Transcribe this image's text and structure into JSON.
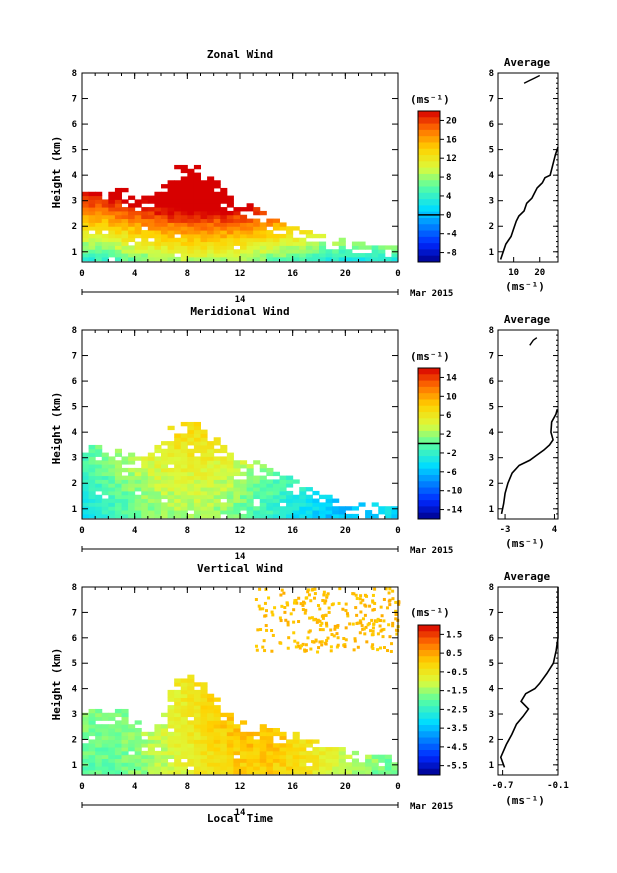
{
  "figure": {
    "date_label": "Mar 2015",
    "day_label": "14",
    "xlabel_bottom": "Local Time",
    "unit_label": "(ms⁻¹)",
    "profile_unit_label": "(ms⁻¹)"
  },
  "chart_data": [
    {
      "type": "heatmap",
      "name": "zonal",
      "title": "Zonal Wind",
      "ylabel": "Height (km)",
      "xlabel": "",
      "x_ticks": [
        "0",
        "4",
        "8",
        "12",
        "16",
        "20",
        "0"
      ],
      "y_ticks": [
        "1",
        "2",
        "3",
        "4",
        "5",
        "6",
        "7",
        "8"
      ],
      "xlim": [
        0,
        24
      ],
      "ylim": [
        0.6,
        8.0
      ],
      "colorbar": {
        "unit": "(ms⁻¹)",
        "min": -10,
        "max": 22,
        "tick_labels": [
          "20",
          "16",
          "12",
          "8",
          "4",
          "0",
          "-4",
          "-8"
        ],
        "tick_values": [
          20,
          16,
          12,
          8,
          4,
          0,
          -4,
          -8
        ],
        "zero_line": 0
      },
      "data_extent": [
        {
          "t": 0,
          "top": 3.4
        },
        {
          "t": 1,
          "top": 3.3
        },
        {
          "t": 2,
          "top": 3.1
        },
        {
          "t": 3,
          "top": 3.6
        },
        {
          "t": 4,
          "top": 3.0
        },
        {
          "t": 5,
          "top": 3.1
        },
        {
          "t": 6,
          "top": 3.6
        },
        {
          "t": 7,
          "top": 4.2
        },
        {
          "t": 8,
          "top": 4.4
        },
        {
          "t": 9,
          "top": 4.2
        },
        {
          "t": 10,
          "top": 3.9
        },
        {
          "t": 11,
          "top": 3.2
        },
        {
          "t": 12,
          "top": 2.6
        },
        {
          "t": 13,
          "top": 2.8
        },
        {
          "t": 14,
          "top": 2.5
        },
        {
          "t": 15,
          "top": 2.1
        },
        {
          "t": 16,
          "top": 1.9
        },
        {
          "t": 17,
          "top": 1.8
        },
        {
          "t": 18,
          "top": 1.6
        },
        {
          "t": 19,
          "top": 1.5
        },
        {
          "t": 20,
          "top": 1.4
        },
        {
          "t": 21,
          "top": 1.3
        },
        {
          "t": 22,
          "top": 1.2
        },
        {
          "t": 23,
          "top": 1.2
        },
        {
          "t": 24,
          "top": 1.2
        }
      ],
      "value_model": {
        "surface": 6,
        "lapse": 7,
        "diurnal_amp": 3,
        "peak_hour": 9
      },
      "contours": [
        0
      ]
    },
    {
      "type": "heatmap",
      "name": "meridional",
      "title": "Meridional Wind",
      "ylabel": "Height (km)",
      "xlabel": "",
      "x_ticks": [
        "0",
        "4",
        "8",
        "12",
        "16",
        "20",
        "0"
      ],
      "y_ticks": [
        "1",
        "2",
        "3",
        "4",
        "5",
        "6",
        "7",
        "8"
      ],
      "xlim": [
        0,
        24
      ],
      "ylim": [
        0.6,
        8.0
      ],
      "colorbar": {
        "unit": "(ms⁻¹)",
        "min": -16,
        "max": 16,
        "tick_labels": [
          "14",
          "10",
          "6",
          "2",
          "-2",
          "-6",
          "-10",
          "-14"
        ],
        "tick_values": [
          14,
          10,
          6,
          2,
          -2,
          -6,
          -10,
          -14
        ],
        "zero_line": 0
      },
      "data_extent": [
        {
          "t": 0,
          "top": 3.5
        },
        {
          "t": 1,
          "top": 3.4
        },
        {
          "t": 2,
          "top": 3.3
        },
        {
          "t": 3,
          "top": 3.2
        },
        {
          "t": 4,
          "top": 3.0
        },
        {
          "t": 5,
          "top": 3.2
        },
        {
          "t": 6,
          "top": 3.6
        },
        {
          "t": 7,
          "top": 4.3
        },
        {
          "t": 8,
          "top": 4.4
        },
        {
          "t": 9,
          "top": 4.3
        },
        {
          "t": 10,
          "top": 3.8
        },
        {
          "t": 11,
          "top": 3.2
        },
        {
          "t": 12,
          "top": 2.9
        },
        {
          "t": 13,
          "top": 2.8
        },
        {
          "t": 14,
          "top": 2.6
        },
        {
          "t": 15,
          "top": 2.4
        },
        {
          "t": 16,
          "top": 2.1
        },
        {
          "t": 17,
          "top": 1.8
        },
        {
          "t": 18,
          "top": 1.6
        },
        {
          "t": 19,
          "top": 1.4
        },
        {
          "t": 20,
          "top": 1.3
        },
        {
          "t": 21,
          "top": 1.2
        },
        {
          "t": 22,
          "top": 1.2
        },
        {
          "t": 23,
          "top": 1.1
        },
        {
          "t": 24,
          "top": 1.1
        }
      ],
      "value_model": {
        "surface": -2,
        "lapse": 1.5,
        "diurnal_amp": 4,
        "peak_hour": 8
      },
      "contours": [
        0
      ]
    },
    {
      "type": "heatmap",
      "name": "vertical",
      "title": "Vertical Wind",
      "ylabel": "Height (km)",
      "xlabel": "Local Time",
      "x_ticks": [
        "0",
        "4",
        "8",
        "12",
        "16",
        "20",
        "0"
      ],
      "y_ticks": [
        "1",
        "2",
        "3",
        "4",
        "5",
        "6",
        "7",
        "8"
      ],
      "xlim": [
        0,
        24
      ],
      "ylim": [
        0.6,
        8.0
      ],
      "colorbar": {
        "unit": "(ms⁻¹)",
        "min": -6.0,
        "max": 2.0,
        "tick_labels": [
          "1.5",
          "0.5",
          "-0.5",
          "-1.5",
          "-2.5",
          "-3.5",
          "-4.5",
          "-5.5"
        ],
        "tick_values": [
          1.5,
          0.5,
          -0.5,
          -1.5,
          -2.5,
          -3.5,
          -4.5,
          -5.5
        ]
      },
      "data_extent": [
        {
          "t": 0,
          "top": 3.4
        },
        {
          "t": 1,
          "top": 3.1
        },
        {
          "t": 2,
          "top": 2.9
        },
        {
          "t": 3,
          "top": 3.2
        },
        {
          "t": 4,
          "top": 2.8
        },
        {
          "t": 5,
          "top": 2.2
        },
        {
          "t": 6,
          "top": 2.6
        },
        {
          "t": 7,
          "top": 4.2
        },
        {
          "t": 8,
          "top": 4.5
        },
        {
          "t": 9,
          "top": 4.3
        },
        {
          "t": 10,
          "top": 3.8
        },
        {
          "t": 11,
          "top": 3.0
        },
        {
          "t": 12,
          "top": 2.7
        },
        {
          "t": 13,
          "top": 2.4
        },
        {
          "t": 14,
          "top": 2.6
        },
        {
          "t": 15,
          "top": 2.2
        },
        {
          "t": 16,
          "top": 2.3
        },
        {
          "t": 17,
          "top": 2.0
        },
        {
          "t": 18,
          "top": 1.9
        },
        {
          "t": 19,
          "top": 1.7
        },
        {
          "t": 20,
          "top": 1.5
        },
        {
          "t": 21,
          "top": 1.4
        },
        {
          "t": 22,
          "top": 1.3
        },
        {
          "t": 23,
          "top": 1.3
        },
        {
          "t": 24,
          "top": 1.3
        }
      ],
      "value_model": {
        "surface": -1.0,
        "lapse": 0.1,
        "diurnal_amp": 1.0,
        "peak_hour": 13
      },
      "upper_layer": {
        "t_start": 13,
        "t_end": 24,
        "z_bottom": 5.5,
        "z_top": 8.0,
        "value": 0.2
      }
    },
    {
      "type": "line",
      "name": "zonal_avg",
      "title": "Average",
      "xlabel": "(ms⁻¹)",
      "ylabel": "",
      "x_ticks": [
        "10",
        "20"
      ],
      "x_tick_values": [
        10,
        20
      ],
      "xlim": [
        4,
        27
      ],
      "y_ticks": [
        "1",
        "2",
        "3",
        "4",
        "5",
        "6",
        "7",
        "8"
      ],
      "ylim": [
        0.6,
        8.0
      ],
      "profile": [
        [
          5,
          0.7
        ],
        [
          6,
          1.0
        ],
        [
          7,
          1.3
        ],
        [
          9,
          1.6
        ],
        [
          10,
          1.9
        ],
        [
          11,
          2.2
        ],
        [
          12,
          2.4
        ],
        [
          14,
          2.6
        ],
        [
          15,
          2.9
        ],
        [
          17,
          3.1
        ],
        [
          18,
          3.3
        ],
        [
          19,
          3.5
        ],
        [
          20,
          3.6
        ],
        [
          21,
          3.7
        ],
        [
          22,
          3.9
        ],
        [
          24,
          4.0
        ],
        [
          25,
          4.4
        ],
        [
          26,
          4.8
        ],
        [
          27,
          5.1
        ]
      ],
      "upper_profile": [
        [
          14,
          7.6
        ],
        [
          16,
          7.7
        ],
        [
          18,
          7.8
        ],
        [
          20,
          7.9
        ]
      ]
    },
    {
      "type": "line",
      "name": "meridional_avg",
      "title": "Average",
      "xlabel": "(ms⁻¹)",
      "ylabel": "",
      "x_ticks": [
        "-3",
        "4"
      ],
      "x_tick_values": [
        -3,
        4
      ],
      "xlim": [
        -4,
        4.5
      ],
      "y_ticks": [
        "1",
        "2",
        "3",
        "4",
        "5",
        "6",
        "7",
        "8"
      ],
      "ylim": [
        0.6,
        8.0
      ],
      "profile": [
        [
          -3.5,
          0.8
        ],
        [
          -3.2,
          1.2
        ],
        [
          -3.0,
          1.6
        ],
        [
          -2.6,
          2.0
        ],
        [
          -2.0,
          2.4
        ],
        [
          -1.0,
          2.7
        ],
        [
          0.5,
          2.9
        ],
        [
          1.5,
          3.1
        ],
        [
          2.5,
          3.3
        ],
        [
          3.3,
          3.5
        ],
        [
          3.8,
          3.7
        ],
        [
          3.5,
          4.0
        ],
        [
          3.6,
          4.4
        ],
        [
          4.2,
          4.7
        ],
        [
          4.4,
          4.9
        ]
      ],
      "upper_profile": [
        [
          0.5,
          7.4
        ],
        [
          1.0,
          7.6
        ],
        [
          1.5,
          7.7
        ]
      ]
    },
    {
      "type": "line",
      "name": "vertical_avg",
      "title": "Average",
      "xlabel": "(ms⁻¹)",
      "ylabel": "",
      "x_ticks": [
        "-0.7",
        "-0.1"
      ],
      "x_tick_values": [
        -0.7,
        -0.1
      ],
      "xlim": [
        -0.75,
        -0.1
      ],
      "y_ticks": [
        "1",
        "2",
        "3",
        "4",
        "5",
        "6",
        "7",
        "8"
      ],
      "ylim": [
        0.6,
        8.0
      ],
      "profile": [
        [
          -0.68,
          0.9
        ],
        [
          -0.72,
          1.3
        ],
        [
          -0.66,
          1.8
        ],
        [
          -0.6,
          2.2
        ],
        [
          -0.55,
          2.6
        ],
        [
          -0.48,
          2.9
        ],
        [
          -0.42,
          3.2
        ],
        [
          -0.5,
          3.5
        ],
        [
          -0.45,
          3.8
        ],
        [
          -0.35,
          4.0
        ],
        [
          -0.3,
          4.2
        ],
        [
          -0.22,
          4.6
        ],
        [
          -0.15,
          5.0
        ],
        [
          -0.12,
          5.5
        ],
        [
          -0.1,
          6.0
        ],
        [
          -0.1,
          7.0
        ],
        [
          -0.1,
          8.0
        ]
      ]
    }
  ]
}
